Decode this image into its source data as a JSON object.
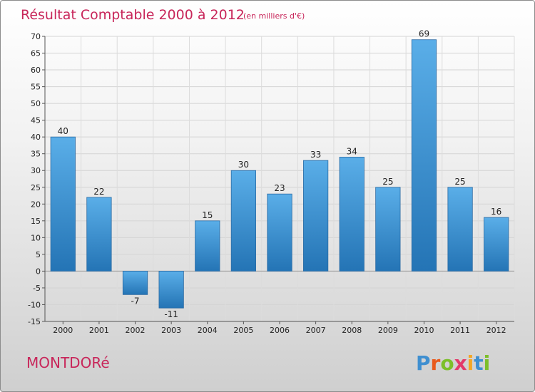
{
  "page": {
    "commune_name": "MONTDORé",
    "brand": "Proxiti",
    "brand_letters": [
      "P",
      "r",
      "o",
      "x",
      "i",
      "t",
      "i"
    ],
    "brand_colors": [
      "#3f8fd0",
      "#e95a1c",
      "#7cbf2a",
      "#e33a6a",
      "#f5a623",
      "#3f8fd0",
      "#7cbf2a"
    ]
  },
  "chart_data": {
    "type": "bar",
    "title": "Résultat Comptable 2000 à 2012",
    "subtitle": "(en milliers d'€)",
    "categories": [
      "2000",
      "2001",
      "2002",
      "2003",
      "2004",
      "2005",
      "2006",
      "2007",
      "2008",
      "2009",
      "2010",
      "2011",
      "2012"
    ],
    "values": [
      40,
      22,
      -7,
      -11,
      15,
      30,
      23,
      33,
      34,
      25,
      69,
      25,
      16
    ],
    "ylim": [
      -15,
      70
    ],
    "yticks": [
      -15,
      -10,
      -5,
      0,
      5,
      10,
      15,
      20,
      25,
      30,
      35,
      40,
      45,
      50,
      55,
      60,
      65,
      70
    ],
    "xlabel": "",
    "ylabel": "",
    "grid": true,
    "bar_color": "#4a9edd",
    "bar_color_dark": "#2a78b8"
  }
}
